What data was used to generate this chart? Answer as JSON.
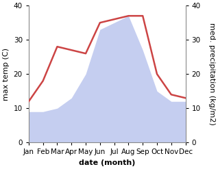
{
  "months": [
    "Jan",
    "Feb",
    "Mar",
    "Apr",
    "May",
    "Jun",
    "Jul",
    "Aug",
    "Sep",
    "Oct",
    "Nov",
    "Dec"
  ],
  "temperature": [
    12,
    18,
    28,
    27,
    26,
    35,
    36,
    37,
    37,
    20,
    14,
    13
  ],
  "precipitation": [
    9,
    9,
    10,
    13,
    20,
    33,
    35,
    37,
    27,
    15,
    12,
    12
  ],
  "temp_color": "#cc4444",
  "precip_color": "#c5cef0",
  "ylim": [
    0,
    40
  ],
  "yticks": [
    0,
    10,
    20,
    30,
    40
  ],
  "ylabel_left": "max temp (C)",
  "ylabel_right": "med. precipitation (kg/m2)",
  "xlabel": "date (month)",
  "label_fontsize": 8,
  "tick_fontsize": 7.5,
  "line_width": 1.8,
  "bg_color": "#ffffff"
}
